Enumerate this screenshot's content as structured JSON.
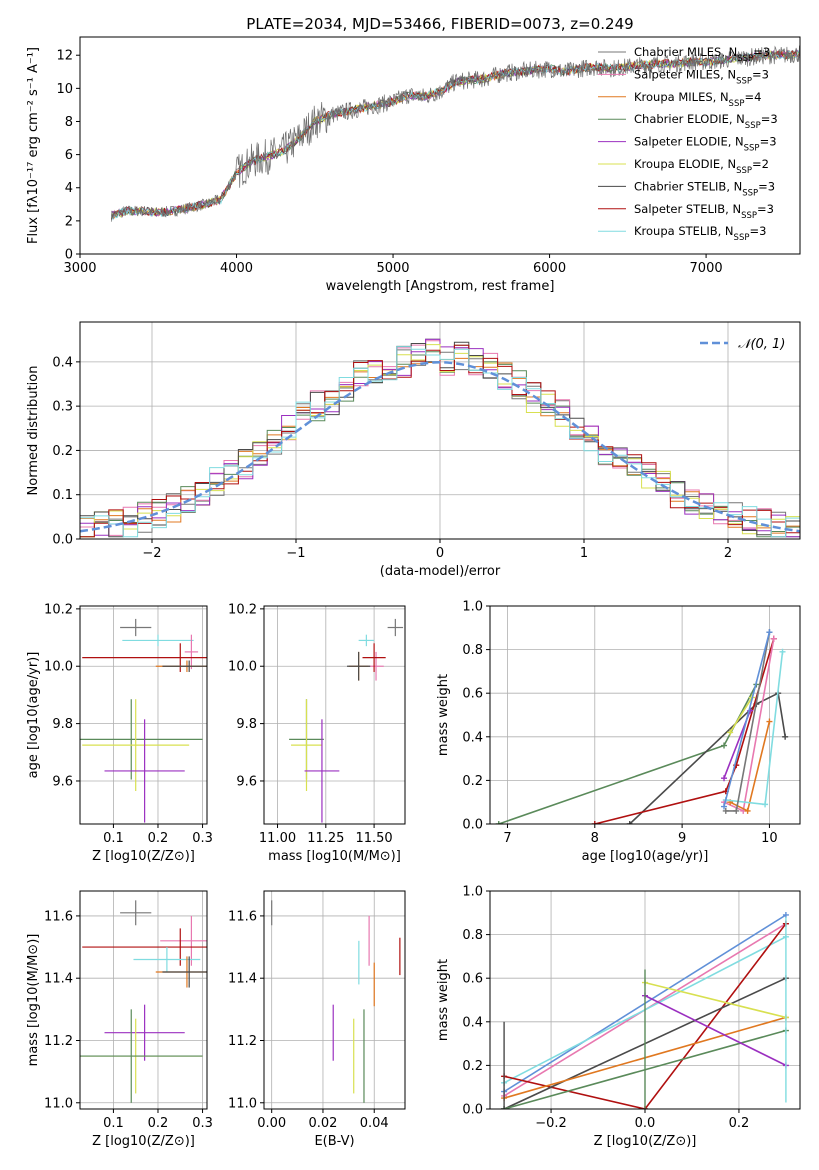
{
  "title": "PLATE=2034, MJD=53466, FIBERID=0073, z=0.249",
  "colors": {
    "Chabrier MILES": "#777777",
    "Salpeter MILES": "#e878b0",
    "Kroupa MILES": "#e07820",
    "Chabrier ELODIE": "#5a8a5a",
    "Salpeter ELODIE": "#9b30c0",
    "Kroupa ELODIE": "#d8e050",
    "Chabrier STELIB": "#4a4a4a",
    "Salpeter STELIB": "#b01010",
    "Kroupa STELIB": "#80dce0",
    "gauss": "#6090d8"
  },
  "chart_data": [
    {
      "id": "spectrum",
      "type": "line",
      "title": "PLATE=2034, MJD=53466, FIBERID=0073, z=0.249",
      "xlabel": "wavelength [Angstrom, rest frame]",
      "ylabel": "Flux [fλ10⁻¹⁷ erg cm⁻² s⁻¹ A⁻¹]",
      "xlim": [
        3000,
        7600
      ],
      "ylim": [
        0,
        13.1
      ],
      "xticks": [
        3000,
        4000,
        5000,
        6000,
        7000
      ],
      "yticks": [
        0,
        2,
        4,
        6,
        8,
        10,
        12
      ],
      "grid": false,
      "legend_position": "top-right",
      "data_spectrum": {
        "x": [
          3200,
          3300,
          3400,
          3500,
          3600,
          3700,
          3800,
          3900,
          4000,
          4100,
          4200,
          4300,
          4400,
          4500,
          4600,
          4700,
          4800,
          4900,
          5000,
          5100,
          5200,
          5300,
          5400,
          5500,
          5600,
          5700,
          5800,
          5900,
          6000,
          6100,
          6200,
          6300,
          6400,
          6500,
          6600,
          6700,
          6800,
          6900,
          7000,
          7100,
          7200,
          7300,
          7400,
          7500,
          7600
        ],
        "y": [
          2.3,
          2.6,
          2.6,
          2.5,
          2.6,
          2.8,
          3.0,
          3.3,
          4.9,
          5.6,
          5.9,
          6.2,
          7.0,
          8.0,
          8.4,
          8.6,
          8.8,
          9.0,
          9.2,
          9.6,
          9.5,
          9.8,
          10.4,
          10.5,
          10.6,
          10.9,
          11.0,
          11.1,
          11.2,
          11.0,
          11.2,
          11.3,
          11.2,
          11.3,
          11.4,
          11.5,
          11.5,
          11.6,
          11.6,
          11.7,
          11.8,
          11.9,
          12.0,
          12.0,
          12.1
        ]
      },
      "legend": [
        "Chabrier MILES, N_SSP=3",
        "Salpeter MILES, N_SSP=3",
        "Kroupa MILES, N_SSP=4",
        "Chabrier ELODIE, N_SSP=3",
        "Salpeter ELODIE, N_SSP=3",
        "Kroupa ELODIE, N_SSP=2",
        "Chabrier STELIB, N_SSP=3",
        "Salpeter STELIB, N_SSP=3",
        "Kroupa STELIB, N_SSP=3"
      ]
    },
    {
      "id": "residuals",
      "type": "histogram",
      "xlabel": "(data-model)/error",
      "ylabel": "Normed distribution",
      "xlim": [
        -2.5,
        2.5
      ],
      "ylim": [
        0,
        0.49
      ],
      "xticks": [
        -2,
        -1,
        0,
        1,
        2
      ],
      "yticks": [
        0.0,
        0.1,
        0.2,
        0.3,
        0.4
      ],
      "grid": true,
      "legend": [
        "N(0,1)"
      ],
      "legend_position": "top-right",
      "bin_edges": [
        -2.5,
        -2.4,
        -2.3,
        -2.2,
        -2.1,
        -2.0,
        -1.9,
        -1.8,
        -1.7,
        -1.6,
        -1.5,
        -1.4,
        -1.3,
        -1.2,
        -1.1,
        -1.0,
        -0.9,
        -0.8,
        -0.7,
        -0.6,
        -0.5,
        -0.4,
        -0.3,
        -0.2,
        -0.1,
        0.0,
        0.1,
        0.2,
        0.3,
        0.4,
        0.5,
        0.6,
        0.7,
        0.8,
        0.9,
        1.0,
        1.1,
        1.2,
        1.3,
        1.4,
        1.5,
        1.6,
        1.7,
        1.8,
        1.9,
        2.0,
        2.1,
        2.2,
        2.3,
        2.4,
        2.5
      ],
      "mean_density": [
        0.02,
        0.03,
        0.035,
        0.04,
        0.05,
        0.055,
        0.07,
        0.09,
        0.11,
        0.13,
        0.15,
        0.17,
        0.2,
        0.22,
        0.25,
        0.28,
        0.3,
        0.31,
        0.34,
        0.37,
        0.38,
        0.39,
        0.4,
        0.41,
        0.42,
        0.4,
        0.41,
        0.4,
        0.39,
        0.37,
        0.35,
        0.32,
        0.3,
        0.28,
        0.25,
        0.23,
        0.2,
        0.18,
        0.16,
        0.14,
        0.12,
        0.1,
        0.09,
        0.08,
        0.06,
        0.05,
        0.04,
        0.035,
        0.03,
        0.02
      ]
    },
    {
      "id": "z-age",
      "type": "errorbar",
      "xlabel": "Z [log10(Z/Z⊙)]",
      "ylabel": "age  [log10(age/yr)]",
      "xlim": [
        0.025,
        0.31
      ],
      "ylim": [
        9.45,
        10.21
      ],
      "xticks": [
        0.1,
        0.2,
        0.3
      ],
      "yticks": [
        9.6,
        9.8,
        10.0,
        10.2
      ],
      "grid": true,
      "points": [
        {
          "model": "Chabrier MILES",
          "x": 0.15,
          "y": 10.135,
          "xerr": 0.035,
          "yerr": 0.03
        },
        {
          "model": "Kroupa STELIB",
          "x": 0.2,
          "y": 10.09,
          "xerr": 0.08,
          "yerr": 0.02
        },
        {
          "model": "Salpeter MILES",
          "x": 0.275,
          "y": 10.05,
          "xerr": 0.015,
          "yerr": 0.06
        },
        {
          "model": "Salpeter STELIB",
          "x": 0.25,
          "y": 10.03,
          "xerr": 0.22,
          "yerr": 0.05
        },
        {
          "model": "Kroupa MILES",
          "x": 0.265,
          "y": 10.0,
          "xerr": 0.07,
          "yerr": 0.02
        },
        {
          "model": "Chabrier STELIB",
          "x": 0.27,
          "y": 10.0,
          "xerr": 0.06,
          "yerr": 0.02
        },
        {
          "model": "Chabrier ELODIE",
          "x": 0.14,
          "y": 9.745,
          "xerr": 0.16,
          "yerr": 0.14
        },
        {
          "model": "Kroupa ELODIE",
          "x": 0.15,
          "y": 9.725,
          "xerr": 0.12,
          "yerr": 0.16
        },
        {
          "model": "Salpeter ELODIE",
          "x": 0.17,
          "y": 9.635,
          "xerr": 0.09,
          "yerr": 0.18
        }
      ]
    },
    {
      "id": "mass-age",
      "type": "errorbar",
      "xlabel": "mass [log10(M/M⊙)]",
      "ylabel": "",
      "xlim": [
        10.93,
        11.66
      ],
      "ylim": [
        9.45,
        10.21
      ],
      "xticks": [
        11.0,
        11.25,
        11.5
      ],
      "xticklabels": [
        "11.00",
        "11.25",
        "11.50"
      ],
      "yticks": [
        9.6,
        9.8,
        10.0,
        10.2
      ],
      "grid": true,
      "points": [
        {
          "model": "Chabrier MILES",
          "x": 11.61,
          "y": 10.135,
          "xerr": 0.04,
          "yerr": 0.03
        },
        {
          "model": "Kroupa STELIB",
          "x": 11.46,
          "y": 10.09,
          "xerr": 0.04,
          "yerr": 0.02
        },
        {
          "model": "Salpeter MILES",
          "x": 11.51,
          "y": 10.0,
          "xerr": 0.04,
          "yerr": 0.05
        },
        {
          "model": "Salpeter STELIB",
          "x": 11.5,
          "y": 10.03,
          "xerr": 0.06,
          "yerr": 0.05
        },
        {
          "model": "Kroupa MILES",
          "x": 11.42,
          "y": 10.0,
          "xerr": 0.05,
          "yerr": 0.05
        },
        {
          "model": "Chabrier STELIB",
          "x": 11.42,
          "y": 10.0,
          "xerr": 0.06,
          "yerr": 0.05
        },
        {
          "model": "Chabrier ELODIE",
          "x": 11.15,
          "y": 9.745,
          "xerr": 0.09,
          "yerr": 0.14
        },
        {
          "model": "Kroupa ELODIE",
          "x": 11.15,
          "y": 9.725,
          "xerr": 0.08,
          "yerr": 0.16
        },
        {
          "model": "Salpeter ELODIE",
          "x": 11.23,
          "y": 9.635,
          "xerr": 0.09,
          "yerr": 0.18
        }
      ]
    },
    {
      "id": "age-weight",
      "type": "line",
      "xlabel": "age  [log10(age/yr)]",
      "ylabel": "mass weight",
      "xlim": [
        6.8,
        10.35
      ],
      "ylim": [
        0,
        1.0
      ],
      "xticks": [
        7,
        8,
        9,
        10
      ],
      "yticks": [
        0.0,
        0.2,
        0.4,
        0.6,
        0.8,
        1.0
      ],
      "grid": true,
      "series": [
        {
          "model": "Chabrier ELODIE",
          "x": [
            6.9,
            9.48,
            9.85
          ],
          "y": [
            0.0,
            0.36,
            0.64
          ]
        },
        {
          "model": "Chabrier STELIB",
          "x": [
            8.4,
            9.85,
            10.1,
            10.18
          ],
          "y": [
            0.0,
            0.55,
            0.6,
            0.4
          ]
        },
        {
          "model": "Salpeter STELIB",
          "x": [
            8.0,
            9.5,
            9.62,
            10.05
          ],
          "y": [
            0.0,
            0.15,
            0.27,
            0.85
          ]
        },
        {
          "model": "Salpeter MILES",
          "x": [
            9.48,
            9.7,
            10.05
          ],
          "y": [
            0.1,
            0.06,
            0.85
          ]
        },
        {
          "model": "Kroupa MILES",
          "x": [
            9.55,
            9.75,
            10.0
          ],
          "y": [
            0.1,
            0.06,
            0.47
          ]
        },
        {
          "model": "Kroupa STELIB",
          "x": [
            9.5,
            9.95,
            10.15
          ],
          "y": [
            0.11,
            0.09,
            0.79
          ]
        },
        {
          "model": "Chabrier MILES",
          "x": [
            9.5,
            9.62,
            10.0
          ],
          "y": [
            0.06,
            0.06,
            0.88
          ]
        },
        {
          "model": "Salpeter ELODIE",
          "x": [
            9.48,
            9.78
          ],
          "y": [
            0.21,
            0.52
          ]
        },
        {
          "model": "Kroupa ELODIE",
          "x": [
            9.55,
            9.8
          ],
          "y": [
            0.42,
            0.58
          ]
        },
        {
          "model": "gauss",
          "x": [
            9.48,
            10.0
          ],
          "y": [
            0.08,
            0.88
          ]
        }
      ]
    },
    {
      "id": "z-mass",
      "type": "errorbar",
      "xlabel": "Z [log10(Z/Z⊙)]",
      "ylabel": "mass [log10(M/M⊙)]",
      "xlim": [
        0.025,
        0.31
      ],
      "ylim": [
        10.98,
        11.68
      ],
      "xticks": [
        0.1,
        0.2,
        0.3
      ],
      "yticks": [
        11.0,
        11.2,
        11.4,
        11.6
      ],
      "grid": true,
      "points": [
        {
          "model": "Chabrier MILES",
          "x": 0.15,
          "y": 11.61,
          "xerr": 0.035,
          "yerr": 0.04
        },
        {
          "model": "Salpeter MILES",
          "x": 0.275,
          "y": 11.52,
          "xerr": 0.07,
          "yerr": 0.08
        },
        {
          "model": "Salpeter STELIB",
          "x": 0.25,
          "y": 11.5,
          "xerr": 0.22,
          "yerr": 0.06
        },
        {
          "model": "Kroupa STELIB",
          "x": 0.22,
          "y": 11.46,
          "xerr": 0.075,
          "yerr": 0.04
        },
        {
          "model": "Kroupa MILES",
          "x": 0.265,
          "y": 11.42,
          "xerr": 0.07,
          "yerr": 0.05
        },
        {
          "model": "Chabrier STELIB",
          "x": 0.27,
          "y": 11.42,
          "xerr": 0.06,
          "yerr": 0.05
        },
        {
          "model": "Salpeter ELODIE",
          "x": 0.17,
          "y": 11.225,
          "xerr": 0.09,
          "yerr": 0.09
        },
        {
          "model": "Kroupa ELODIE",
          "x": 0.15,
          "y": 11.15,
          "xerr": 0.15,
          "yerr": 0.12
        },
        {
          "model": "Chabrier ELODIE",
          "x": 0.14,
          "y": 11.15,
          "xerr": 0.16,
          "yerr": 0.15
        }
      ]
    },
    {
      "id": "ebv-mass",
      "type": "errorbar",
      "xlabel": "E(B-V)",
      "ylabel": "",
      "xlim": [
        -0.003,
        0.052
      ],
      "ylim": [
        10.98,
        11.68
      ],
      "xticks": [
        0.0,
        0.02,
        0.04
      ],
      "xticklabels": [
        "0.00",
        "0.02",
        "0.04"
      ],
      "yticks": [
        11.0,
        11.2,
        11.4,
        11.6
      ],
      "grid": true,
      "points": [
        {
          "model": "Chabrier MILES",
          "x": 0.0,
          "y": 11.61,
          "xerr": 0.0,
          "yerr": 0.04
        },
        {
          "model": "Salpeter MILES",
          "x": 0.038,
          "y": 11.52,
          "xerr": 0.0,
          "yerr": 0.08
        },
        {
          "model": "Salpeter STELIB",
          "x": 0.05,
          "y": 11.47,
          "xerr": 0.0,
          "yerr": 0.06
        },
        {
          "model": "Kroupa STELIB",
          "x": 0.034,
          "y": 11.45,
          "xerr": 0.0,
          "yerr": 0.07
        },
        {
          "model": "Kroupa MILES",
          "x": 0.04,
          "y": 11.38,
          "xerr": 0.0,
          "yerr": 0.07
        },
        {
          "model": "Salpeter ELODIE",
          "x": 0.024,
          "y": 11.225,
          "xerr": 0.0,
          "yerr": 0.09
        },
        {
          "model": "Kroupa ELODIE",
          "x": 0.032,
          "y": 11.15,
          "xerr": 0.0,
          "yerr": 0.12
        },
        {
          "model": "Chabrier ELODIE",
          "x": 0.036,
          "y": 11.15,
          "xerr": 0.0,
          "yerr": 0.15
        }
      ]
    },
    {
      "id": "z-weight",
      "type": "line",
      "xlabel": "Z [log10(Z/Z⊙)]",
      "ylabel": "mass weight",
      "xlim": [
        -0.33,
        0.33
      ],
      "ylim": [
        0,
        1.0
      ],
      "xticks": [
        -0.2,
        0.0,
        0.2
      ],
      "xticklabels": [
        "−0.2",
        "0.0",
        "0.2"
      ],
      "yticks": [
        0.0,
        0.2,
        0.4,
        0.6,
        0.8,
        1.0
      ],
      "grid": true,
      "series": [
        {
          "model": "gauss",
          "x": [
            -0.3,
            0.3
          ],
          "y": [
            0.08,
            0.89
          ]
        },
        {
          "model": "Salpeter MILES",
          "x": [
            -0.3,
            0.3
          ],
          "y": [
            0.06,
            0.85
          ]
        },
        {
          "model": "Kroupa STELIB",
          "x": [
            -0.3,
            0.3
          ],
          "y": [
            0.12,
            0.79
          ]
        },
        {
          "model": "Salpeter STELIB",
          "x": [
            -0.3,
            0.0,
            0.3
          ],
          "y": [
            0.15,
            0.0,
            0.85
          ]
        },
        {
          "model": "Chabrier STELIB",
          "x": [
            -0.3,
            0.3
          ],
          "y": [
            0.0,
            0.6
          ]
        },
        {
          "model": "Kroupa MILES",
          "x": [
            -0.3,
            0.3
          ],
          "y": [
            0.05,
            0.42
          ]
        },
        {
          "model": "Chabrier ELODIE",
          "x": [
            -0.3,
            0.3
          ],
          "y": [
            0.0,
            0.36
          ]
        },
        {
          "model": "Salpeter ELODIE",
          "x": [
            0.0,
            0.3
          ],
          "y": [
            0.52,
            0.2
          ]
        },
        {
          "model": "Kroupa ELODIE",
          "x": [
            0.0,
            0.3
          ],
          "y": [
            0.58,
            0.42
          ]
        }
      ],
      "verticals": [
        {
          "model": "Chabrier STELIB",
          "x": -0.3,
          "y0": 0.0,
          "y1": 0.4
        },
        {
          "model": "Chabrier ELODIE",
          "x": 0.0,
          "y0": 0.0,
          "y1": 0.64
        },
        {
          "model": "Kroupa STELIB",
          "x": 0.3,
          "y0": 0.03,
          "y1": 0.88
        }
      ]
    }
  ]
}
